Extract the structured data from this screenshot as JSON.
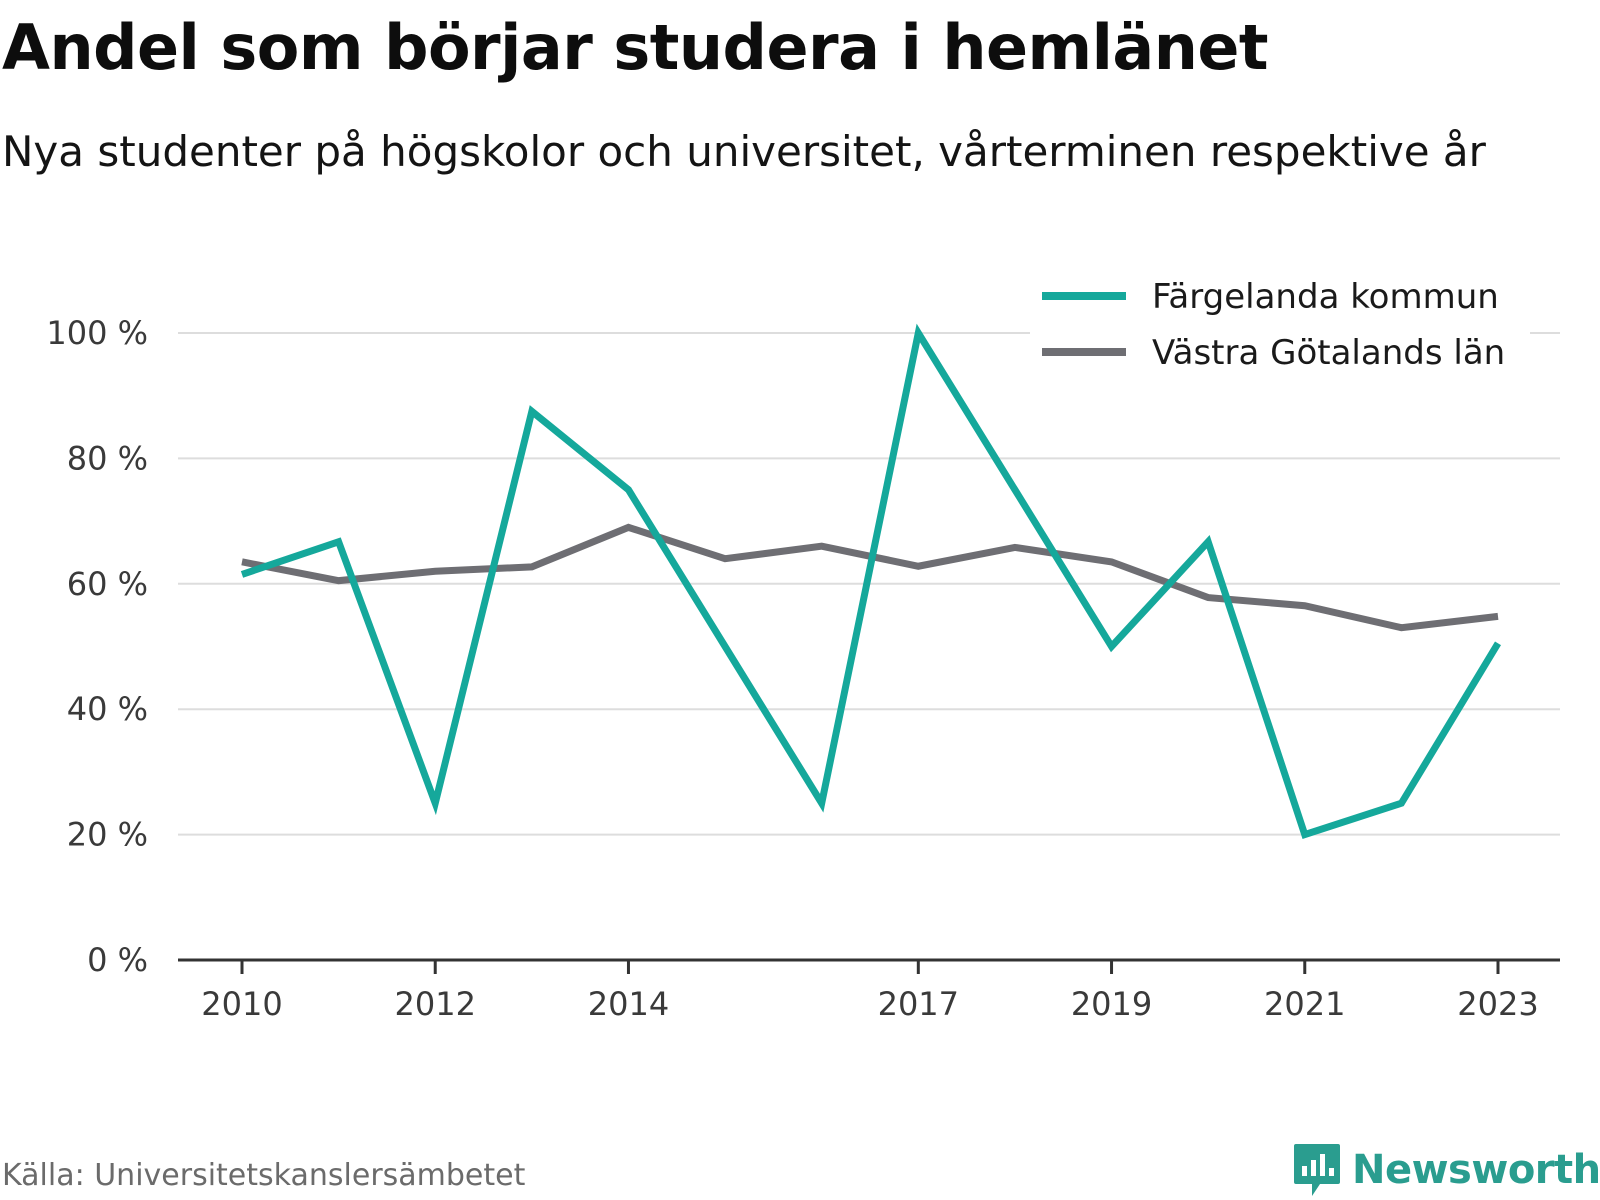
{
  "title": "Andel som börjar studera i hemlänet",
  "subtitle": "Nya studenter på högskolor och universitet, vårterminen respektive år",
  "source": "Källa: Universitetskanslersämbetet",
  "brand": "Newsworthy",
  "colors": {
    "series1": "#15a89b",
    "series2": "#6e6e73",
    "grid": "#dddddd",
    "axis": "#333333",
    "brand": "#2a9d8f"
  },
  "chart_data": {
    "type": "line",
    "x": [
      2010,
      2011,
      2012,
      2013,
      2014,
      2015,
      2016,
      2017,
      2018,
      2019,
      2020,
      2021,
      2022,
      2023
    ],
    "x_tick_labels": [
      "2010",
      "2012",
      "2014",
      "2017",
      "2019",
      "2021",
      "2023"
    ],
    "x_tick_values": [
      2010,
      2012,
      2014,
      2017,
      2019,
      2021,
      2023
    ],
    "y_ticks": [
      0,
      20,
      40,
      60,
      80,
      100
    ],
    "y_tick_labels": [
      "0 %",
      "20 %",
      "40 %",
      "60 %",
      "80 %",
      "100 %"
    ],
    "ylim": [
      0,
      100
    ],
    "xlim": [
      2010,
      2023
    ],
    "grid": true,
    "legend_position": "top-right",
    "series": [
      {
        "name": "Färgelanda kommun",
        "color": "#15a89b",
        "values": [
          61.5,
          66.7,
          25,
          87.5,
          75,
          50,
          25,
          100,
          75,
          50,
          66.7,
          20,
          25,
          50.5
        ]
      },
      {
        "name": "Västra Götalands län",
        "color": "#6e6e73",
        "values": [
          63.5,
          60.5,
          62,
          62.7,
          69,
          64,
          66,
          62.8,
          65.8,
          63.5,
          57.8,
          56.5,
          53,
          54.8
        ]
      }
    ]
  }
}
